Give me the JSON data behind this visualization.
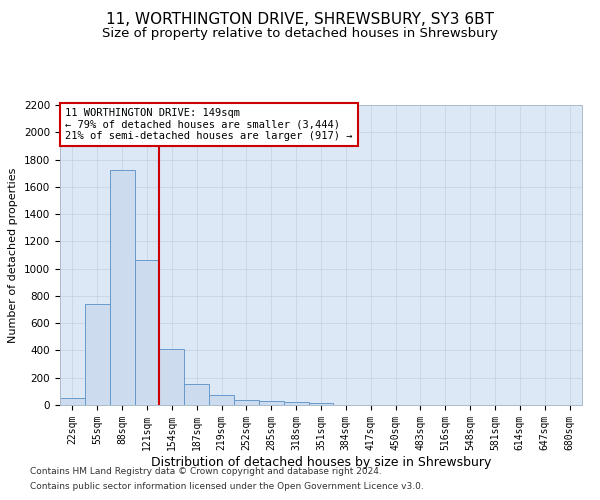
{
  "title": "11, WORTHINGTON DRIVE, SHREWSBURY, SY3 6BT",
  "subtitle": "Size of property relative to detached houses in Shrewsbury",
  "xlabel": "Distribution of detached houses by size in Shrewsbury",
  "ylabel": "Number of detached properties",
  "bin_labels": [
    "22sqm",
    "55sqm",
    "88sqm",
    "121sqm",
    "154sqm",
    "187sqm",
    "219sqm",
    "252sqm",
    "285sqm",
    "318sqm",
    "351sqm",
    "384sqm",
    "417sqm",
    "450sqm",
    "483sqm",
    "516sqm",
    "548sqm",
    "581sqm",
    "614sqm",
    "647sqm",
    "680sqm"
  ],
  "bar_values": [
    50,
    740,
    1720,
    1060,
    410,
    155,
    75,
    40,
    28,
    20,
    13,
    0,
    0,
    0,
    0,
    0,
    0,
    0,
    0,
    0,
    0
  ],
  "bar_color": "#ccdcee",
  "bar_edgecolor": "#6699cc",
  "vline_color": "#cc0000",
  "annotation_text": "11 WORTHINGTON DRIVE: 149sqm\n← 79% of detached houses are smaller (3,444)\n21% of semi-detached houses are larger (917) →",
  "annotation_box_color": "#ffffff",
  "annotation_box_edgecolor": "#cc0000",
  "ylim": [
    0,
    2200
  ],
  "yticks": [
    0,
    200,
    400,
    600,
    800,
    1000,
    1200,
    1400,
    1600,
    1800,
    2000,
    2200
  ],
  "grid_color": "#c8d4e4",
  "background_color": "#dce8f5",
  "footnote1": "Contains HM Land Registry data © Crown copyright and database right 2024.",
  "footnote2": "Contains public sector information licensed under the Open Government Licence v3.0.",
  "title_fontsize": 11,
  "subtitle_fontsize": 9.5,
  "xlabel_fontsize": 9,
  "ylabel_fontsize": 8
}
